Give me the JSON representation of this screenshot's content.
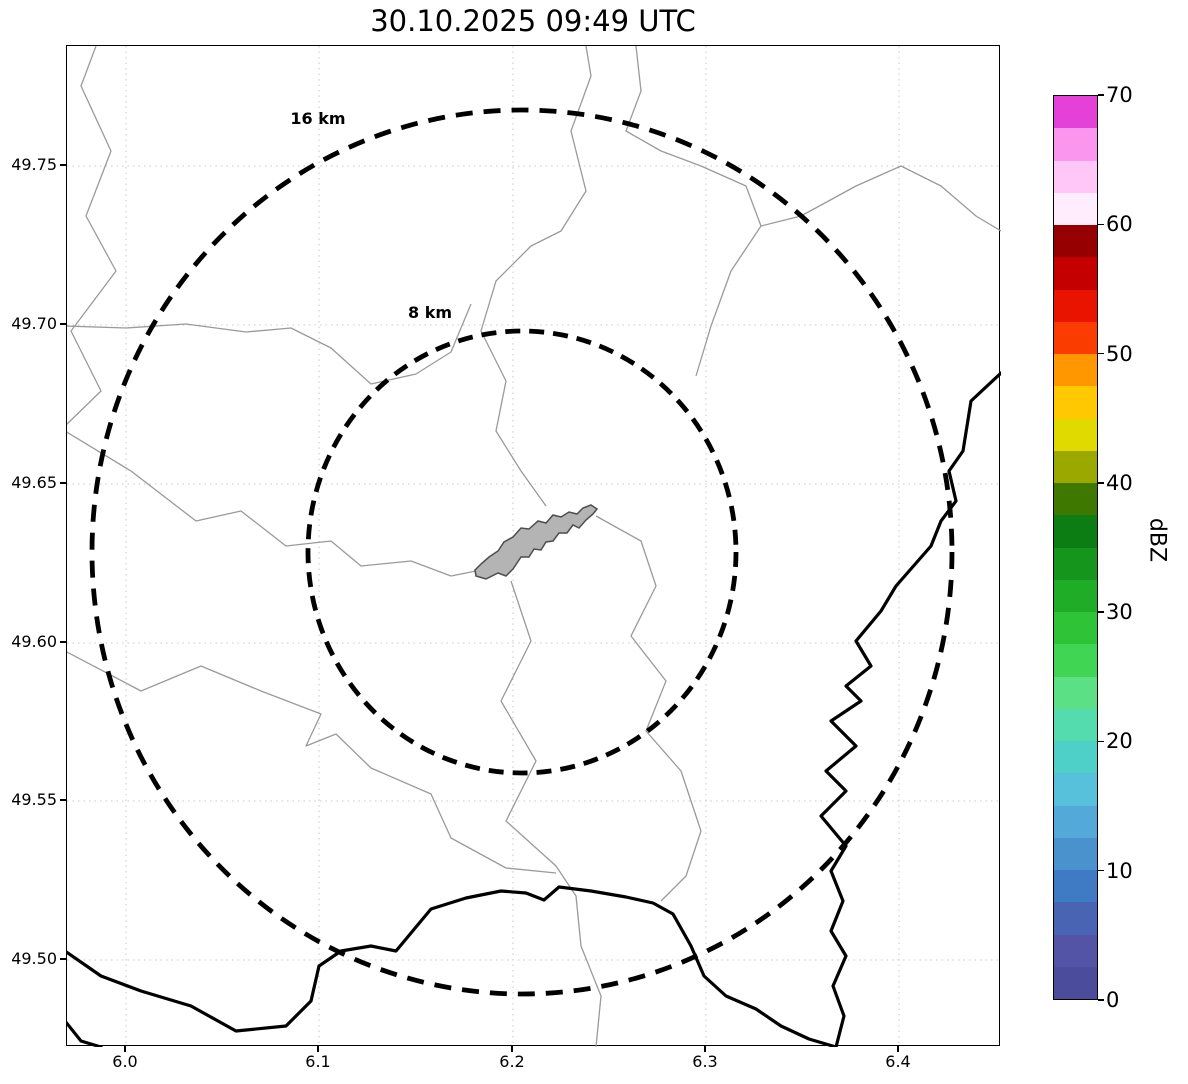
{
  "title": "30.10.2025 09:49 UTC",
  "axes": {
    "x_ticks": [
      "6.0",
      "6.1",
      "6.2",
      "6.3",
      "6.4"
    ],
    "y_ticks": [
      "49.75",
      "49.70",
      "49.65",
      "49.60",
      "49.55",
      "49.50"
    ]
  },
  "range_rings": {
    "outer_label": "16 km",
    "inner_label": "8 km"
  },
  "colorbar": {
    "label": "dBZ",
    "min": 0,
    "max": 70,
    "ticks": [
      0,
      10,
      20,
      30,
      40,
      50,
      60,
      70
    ],
    "colors_bottom_to_top": [
      "#4c4c9c",
      "#5454a6",
      "#4a64b4",
      "#3f7ac4",
      "#4992ce",
      "#53aad8",
      "#57c0da",
      "#4ed0c8",
      "#54dcae",
      "#5ce085",
      "#40d552",
      "#2fc437",
      "#1fad27",
      "#15951c",
      "#0c7d12",
      "#3f7800",
      "#9aa800",
      "#e0da00",
      "#ffc800",
      "#ff9800",
      "#fa3c00",
      "#e81400",
      "#c40000",
      "#960000",
      "#ffecfd",
      "#fec7f7",
      "#fb96ee",
      "#e540d8"
    ]
  },
  "map_colors": {
    "city_fill": "#b4b4b4",
    "city_outline": "#4d4d4d",
    "admin_line": "#9a9a9a",
    "national_border": "#000000",
    "ring_color": "#000000",
    "grid_color": "#c8c8c8"
  }
}
